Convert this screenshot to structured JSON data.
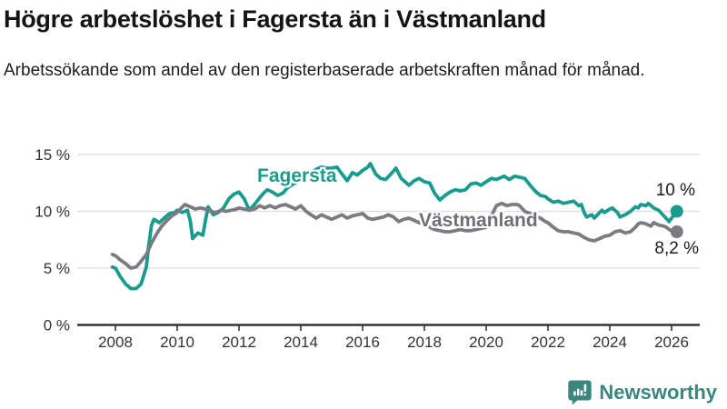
{
  "header": {
    "title": "Högre arbetslöshet i Fagersta än i Västmanland",
    "subtitle": "Arbetssökande som andel av den registerbaserade arbetskraften månad för månad."
  },
  "chart_data": {
    "type": "line",
    "unit": "%",
    "grid": true,
    "x_axis": {
      "ticks": [
        {
          "value": 2008,
          "label": "2008"
        },
        {
          "value": 2010,
          "label": "2010"
        },
        {
          "value": 2012,
          "label": "2012"
        },
        {
          "value": 2014,
          "label": "2014"
        },
        {
          "value": 2016,
          "label": "2016"
        },
        {
          "value": 2018,
          "label": "2018"
        },
        {
          "value": 2020,
          "label": "2020"
        },
        {
          "value": 2022,
          "label": "2022"
        },
        {
          "value": 2024,
          "label": "2024"
        },
        {
          "value": 2026,
          "label": "2026"
        }
      ]
    },
    "y_axis": {
      "range": [
        0,
        15
      ],
      "ticks": [
        {
          "value": 0,
          "label": "0 %"
        },
        {
          "value": 5,
          "label": "5 %"
        },
        {
          "value": 10,
          "label": "10 %"
        },
        {
          "value": 15,
          "label": "15 %"
        }
      ]
    },
    "series": [
      {
        "name": "Fagersta",
        "color": "#199b8e",
        "end_label": "10 %",
        "end_value": 10.0,
        "points": [
          [
            2007.9,
            5.1
          ],
          [
            2008.0,
            5.0
          ],
          [
            2008.17,
            4.2
          ],
          [
            2008.33,
            3.6
          ],
          [
            2008.5,
            3.2
          ],
          [
            2008.67,
            3.2
          ],
          [
            2008.83,
            3.6
          ],
          [
            2009.0,
            5.1
          ],
          [
            2009.08,
            7.0
          ],
          [
            2009.17,
            8.8
          ],
          [
            2009.25,
            9.3
          ],
          [
            2009.42,
            9.0
          ],
          [
            2009.58,
            9.4
          ],
          [
            2009.75,
            9.8
          ],
          [
            2009.92,
            9.9
          ],
          [
            2010.0,
            10.1
          ],
          [
            2010.17,
            9.9
          ],
          [
            2010.33,
            10.1
          ],
          [
            2010.42,
            9.2
          ],
          [
            2010.5,
            7.6
          ],
          [
            2010.67,
            8.1
          ],
          [
            2010.83,
            7.9
          ],
          [
            2010.92,
            9.3
          ],
          [
            2011.0,
            10.4
          ],
          [
            2011.17,
            9.7
          ],
          [
            2011.33,
            9.9
          ],
          [
            2011.5,
            10.3
          ],
          [
            2011.67,
            11.1
          ],
          [
            2011.83,
            11.5
          ],
          [
            2012.0,
            11.7
          ],
          [
            2012.17,
            11.1
          ],
          [
            2012.33,
            10.1
          ],
          [
            2012.5,
            10.6
          ],
          [
            2012.67,
            11.2
          ],
          [
            2012.83,
            11.7
          ],
          [
            2012.92,
            11.9
          ],
          [
            2013.08,
            11.7
          ],
          [
            2013.25,
            11.4
          ],
          [
            2013.42,
            11.6
          ],
          [
            2013.58,
            12.1
          ],
          [
            2013.75,
            12.4
          ],
          [
            2014.0,
            12.8
          ],
          [
            2014.25,
            13.3
          ],
          [
            2014.5,
            13.7
          ],
          [
            2014.67,
            13.9
          ],
          [
            2014.83,
            13.8
          ],
          [
            2015.0,
            13.8
          ],
          [
            2015.17,
            13.9
          ],
          [
            2015.33,
            13.3
          ],
          [
            2015.5,
            12.7
          ],
          [
            2015.67,
            13.4
          ],
          [
            2015.83,
            13.2
          ],
          [
            2016.0,
            13.6
          ],
          [
            2016.17,
            13.9
          ],
          [
            2016.25,
            14.2
          ],
          [
            2016.42,
            13.3
          ],
          [
            2016.58,
            12.9
          ],
          [
            2016.75,
            12.8
          ],
          [
            2016.92,
            13.3
          ],
          [
            2017.08,
            13.8
          ],
          [
            2017.25,
            12.9
          ],
          [
            2017.5,
            12.3
          ],
          [
            2017.67,
            12.7
          ],
          [
            2017.83,
            12.9
          ],
          [
            2018.0,
            12.6
          ],
          [
            2018.17,
            12.5
          ],
          [
            2018.33,
            11.6
          ],
          [
            2018.5,
            11.0
          ],
          [
            2018.67,
            11.4
          ],
          [
            2018.83,
            11.7
          ],
          [
            2019.0,
            11.9
          ],
          [
            2019.17,
            11.8
          ],
          [
            2019.33,
            11.9
          ],
          [
            2019.5,
            12.4
          ],
          [
            2019.67,
            12.5
          ],
          [
            2019.83,
            12.3
          ],
          [
            2020.0,
            12.6
          ],
          [
            2020.17,
            12.9
          ],
          [
            2020.33,
            12.8
          ],
          [
            2020.5,
            13.0
          ],
          [
            2020.58,
            13.1
          ],
          [
            2020.75,
            12.8
          ],
          [
            2020.92,
            13.1
          ],
          [
            2021.08,
            13.0
          ],
          [
            2021.25,
            12.9
          ],
          [
            2021.42,
            12.3
          ],
          [
            2021.58,
            11.8
          ],
          [
            2021.75,
            11.4
          ],
          [
            2021.92,
            11.3
          ],
          [
            2022.0,
            11.1
          ],
          [
            2022.17,
            10.8
          ],
          [
            2022.33,
            10.9
          ],
          [
            2022.5,
            10.7
          ],
          [
            2022.67,
            10.8
          ],
          [
            2022.83,
            10.9
          ],
          [
            2023.0,
            10.5
          ],
          [
            2023.08,
            10.6
          ],
          [
            2023.17,
            9.9
          ],
          [
            2023.25,
            9.5
          ],
          [
            2023.42,
            9.7
          ],
          [
            2023.5,
            9.4
          ],
          [
            2023.67,
            9.9
          ],
          [
            2023.75,
            10.1
          ],
          [
            2023.83,
            9.9
          ],
          [
            2024.0,
            10.2
          ],
          [
            2024.08,
            10.3
          ],
          [
            2024.25,
            9.9
          ],
          [
            2024.33,
            9.5
          ],
          [
            2024.5,
            9.7
          ],
          [
            2024.67,
            10.0
          ],
          [
            2024.83,
            10.4
          ],
          [
            2024.92,
            10.3
          ],
          [
            2025.0,
            10.6
          ],
          [
            2025.17,
            10.5
          ],
          [
            2025.25,
            10.7
          ],
          [
            2025.42,
            10.3
          ],
          [
            2025.58,
            10.1
          ],
          [
            2025.75,
            9.6
          ],
          [
            2025.92,
            9.1
          ],
          [
            2026.0,
            9.4
          ],
          [
            2026.17,
            10.0
          ]
        ]
      },
      {
        "name": "Västmanland",
        "color": "#7b7b82",
        "end_label": "8,2 %",
        "end_value": 8.2,
        "points": [
          [
            2007.9,
            6.2
          ],
          [
            2008.0,
            6.1
          ],
          [
            2008.17,
            5.7
          ],
          [
            2008.33,
            5.4
          ],
          [
            2008.5,
            5.0
          ],
          [
            2008.67,
            5.1
          ],
          [
            2008.83,
            5.6
          ],
          [
            2009.0,
            6.2
          ],
          [
            2009.17,
            7.2
          ],
          [
            2009.33,
            8.0
          ],
          [
            2009.5,
            8.7
          ],
          [
            2009.67,
            9.2
          ],
          [
            2009.83,
            9.6
          ],
          [
            2010.0,
            9.9
          ],
          [
            2010.17,
            10.4
          ],
          [
            2010.25,
            10.6
          ],
          [
            2010.42,
            10.4
          ],
          [
            2010.58,
            10.2
          ],
          [
            2010.75,
            10.3
          ],
          [
            2010.92,
            10.2
          ],
          [
            2011.08,
            10.0
          ],
          [
            2011.25,
            9.9
          ],
          [
            2011.42,
            10.1
          ],
          [
            2011.58,
            10.0
          ],
          [
            2011.75,
            10.1
          ],
          [
            2011.92,
            10.2
          ],
          [
            2012.0,
            10.3
          ],
          [
            2012.17,
            10.2
          ],
          [
            2012.33,
            10.1
          ],
          [
            2012.5,
            10.2
          ],
          [
            2012.67,
            10.5
          ],
          [
            2012.83,
            10.3
          ],
          [
            2013.0,
            10.5
          ],
          [
            2013.17,
            10.3
          ],
          [
            2013.33,
            10.5
          ],
          [
            2013.5,
            10.6
          ],
          [
            2013.67,
            10.4
          ],
          [
            2013.83,
            10.2
          ],
          [
            2014.0,
            10.5
          ],
          [
            2014.17,
            10.0
          ],
          [
            2014.33,
            9.7
          ],
          [
            2014.5,
            9.4
          ],
          [
            2014.67,
            9.7
          ],
          [
            2014.83,
            9.5
          ],
          [
            2015.0,
            9.3
          ],
          [
            2015.17,
            9.5
          ],
          [
            2015.33,
            9.7
          ],
          [
            2015.5,
            9.4
          ],
          [
            2015.67,
            9.6
          ],
          [
            2015.83,
            9.7
          ],
          [
            2016.0,
            9.8
          ],
          [
            2016.17,
            9.4
          ],
          [
            2016.33,
            9.3
          ],
          [
            2016.5,
            9.4
          ],
          [
            2016.67,
            9.5
          ],
          [
            2016.83,
            9.7
          ],
          [
            2017.0,
            9.5
          ],
          [
            2017.17,
            9.1
          ],
          [
            2017.33,
            9.3
          ],
          [
            2017.5,
            9.4
          ],
          [
            2017.67,
            9.2
          ],
          [
            2017.83,
            9.0
          ],
          [
            2018.0,
            8.9
          ],
          [
            2018.17,
            8.6
          ],
          [
            2018.33,
            8.4
          ],
          [
            2018.5,
            8.3
          ],
          [
            2018.67,
            8.2
          ],
          [
            2018.83,
            8.2
          ],
          [
            2019.0,
            8.3
          ],
          [
            2019.17,
            8.4
          ],
          [
            2019.33,
            8.3
          ],
          [
            2019.5,
            8.3
          ],
          [
            2019.67,
            8.4
          ],
          [
            2019.83,
            8.5
          ],
          [
            2020.0,
            8.6
          ],
          [
            2020.17,
            9.6
          ],
          [
            2020.33,
            10.5
          ],
          [
            2020.5,
            10.7
          ],
          [
            2020.67,
            10.5
          ],
          [
            2020.83,
            10.6
          ],
          [
            2021.0,
            10.6
          ],
          [
            2021.08,
            10.5
          ],
          [
            2021.25,
            10.0
          ],
          [
            2021.42,
            9.8
          ],
          [
            2021.58,
            9.6
          ],
          [
            2021.75,
            9.4
          ],
          [
            2021.92,
            9.1
          ],
          [
            2022.0,
            9.0
          ],
          [
            2022.17,
            8.6
          ],
          [
            2022.33,
            8.3
          ],
          [
            2022.5,
            8.2
          ],
          [
            2022.67,
            8.2
          ],
          [
            2022.83,
            8.1
          ],
          [
            2023.0,
            8.0
          ],
          [
            2023.17,
            7.7
          ],
          [
            2023.33,
            7.5
          ],
          [
            2023.5,
            7.4
          ],
          [
            2023.67,
            7.6
          ],
          [
            2023.83,
            7.8
          ],
          [
            2024.0,
            7.9
          ],
          [
            2024.17,
            8.2
          ],
          [
            2024.33,
            8.3
          ],
          [
            2024.5,
            8.1
          ],
          [
            2024.67,
            8.2
          ],
          [
            2024.83,
            8.6
          ],
          [
            2024.92,
            8.9
          ],
          [
            2025.0,
            9.0
          ],
          [
            2025.17,
            8.9
          ],
          [
            2025.33,
            8.7
          ],
          [
            2025.42,
            9.0
          ],
          [
            2025.58,
            8.8
          ],
          [
            2025.75,
            8.7
          ],
          [
            2025.83,
            8.6
          ],
          [
            2025.92,
            8.4
          ],
          [
            2026.0,
            8.3
          ],
          [
            2026.17,
            8.2
          ]
        ]
      }
    ]
  },
  "footer": {
    "brand": "Newsworthy"
  }
}
